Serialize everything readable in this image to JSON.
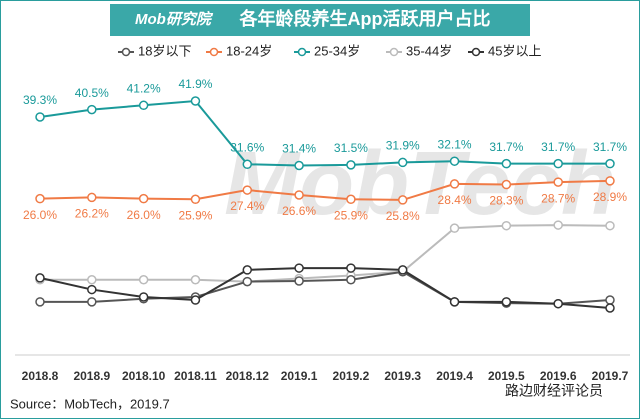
{
  "header": {
    "logo": "Mob研究院"
  },
  "chart_data": {
    "type": "line",
    "title": "各年龄段养生App活跃用户占比",
    "categories": [
      "2018.8",
      "2018.9",
      "2018.10",
      "2018.11",
      "2018.12",
      "2019.1",
      "2019.2",
      "2019.3",
      "2019.4",
      "2019.5",
      "2019.6",
      "2019.7"
    ],
    "series": [
      {
        "name": "18岁以下",
        "color": "#555555",
        "values": [
          9.2,
          9.2,
          9.7,
          10.0,
          12.5,
          12.6,
          12.8,
          14.1,
          9.2,
          9.0,
          8.9,
          9.5
        ]
      },
      {
        "name": "18-24岁",
        "color": "#f07a45",
        "values": [
          26.0,
          26.2,
          26.0,
          25.9,
          27.4,
          26.6,
          25.9,
          25.8,
          28.4,
          28.3,
          28.7,
          28.9
        ],
        "value_labels": [
          "26.0%",
          "26.2%",
          "26.0%",
          "25.9%",
          "27.4%",
          "26.6%",
          "25.9%",
          "25.8%",
          "28.4%",
          "28.3%",
          "28.7%",
          "28.9%"
        ]
      },
      {
        "name": "25-34岁",
        "color": "#1a9a9a",
        "values": [
          39.3,
          40.5,
          41.2,
          41.9,
          31.6,
          31.4,
          31.5,
          31.9,
          32.1,
          31.7,
          31.7,
          31.7
        ],
        "value_labels": [
          "39.3%",
          "40.5%",
          "41.2%",
          "41.9%",
          "31.6%",
          "31.4%",
          "31.5%",
          "31.9%",
          "32.1%",
          "31.7%",
          "31.7%",
          "31.7%"
        ]
      },
      {
        "name": "35-44岁",
        "color": "#bbbbbb",
        "values": [
          12.8,
          12.8,
          12.8,
          12.8,
          12.5,
          13.0,
          13.5,
          14.1,
          21.2,
          21.6,
          21.7,
          21.6
        ]
      },
      {
        "name": "45岁以上",
        "color": "#333333",
        "values": [
          13.1,
          11.2,
          10.0,
          9.5,
          14.4,
          14.7,
          14.7,
          14.4,
          9.2,
          9.2,
          8.9,
          8.2
        ]
      }
    ],
    "watermark": "MobTech",
    "source": "Source：MobTech，2019.7",
    "credit": "路边财经评论员"
  }
}
